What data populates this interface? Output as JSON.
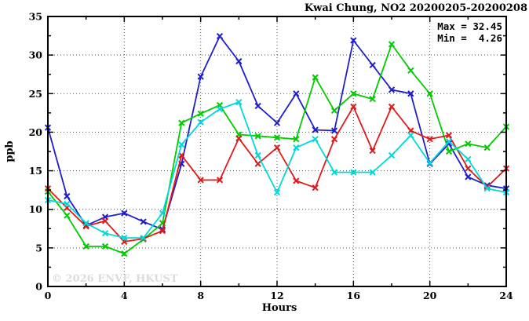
{
  "chart": {
    "title": "Kwai Chung, NO2 20200205-20200208",
    "max_label": "Max = 32.45",
    "min_label": "Min =  4.26",
    "xlabel": "Hours",
    "ylabel": "ppb",
    "watermark": "© 2026 ENVF, HKUST"
  },
  "chart_data": {
    "type": "line",
    "title": "Kwai Chung, NO2 20200205-20200208",
    "xlabel": "Hours",
    "ylabel": "ppb",
    "xlim": [
      0,
      24
    ],
    "ylim": [
      0,
      35
    ],
    "x_major_ticks": [
      0,
      4,
      8,
      12,
      16,
      20,
      24
    ],
    "x_minor_step": 2,
    "y_major_ticks": [
      0,
      5,
      10,
      15,
      20,
      25,
      30,
      35
    ],
    "y_minor_step": 2.5,
    "grid_x": [
      4,
      8,
      12,
      16,
      20
    ],
    "grid_y": [
      5,
      10,
      15,
      20,
      25,
      30
    ],
    "legend": "none",
    "marker": "x-cross",
    "stats": {
      "max": 32.45,
      "min": 4.26
    },
    "x": [
      0,
      1,
      2,
      3,
      4,
      5,
      6,
      7,
      8,
      9,
      10,
      11,
      12,
      13,
      14,
      15,
      16,
      17,
      18,
      19,
      20,
      21,
      22,
      23,
      24
    ],
    "series": [
      {
        "name": "series-blue",
        "color": "#1e1ecd",
        "values": [
          20.6,
          11.7,
          7.9,
          9.0,
          9.5,
          8.4,
          7.4,
          15.9,
          27.2,
          32.45,
          29.2,
          23.4,
          21.2,
          25.0,
          20.3,
          20.2,
          31.9,
          28.7,
          25.5,
          25.0,
          15.9,
          18.5,
          14.2,
          13.1,
          12.7
        ]
      },
      {
        "name": "series-green",
        "color": "#00cc00",
        "values": [
          12.3,
          9.2,
          5.2,
          5.2,
          4.26,
          6.1,
          8.2,
          21.2,
          22.4,
          23.5,
          19.7,
          19.5,
          19.3,
          19.1,
          27.1,
          22.8,
          25.0,
          24.3,
          31.4,
          28.0,
          25.0,
          17.5,
          18.5,
          18.0,
          20.7
        ]
      },
      {
        "name": "series-red",
        "color": "#e01a1a",
        "values": [
          12.7,
          10.2,
          7.8,
          8.5,
          5.8,
          6.2,
          7.2,
          17.0,
          13.8,
          13.8,
          19.2,
          15.9,
          18.0,
          13.7,
          12.8,
          19.1,
          23.3,
          17.6,
          23.3,
          20.2,
          19.1,
          19.6,
          15.3,
          12.9,
          15.3
        ]
      },
      {
        "name": "series-cyan",
        "color": "#00d9d9",
        "values": [
          11.2,
          10.7,
          8.2,
          6.9,
          6.3,
          6.3,
          9.5,
          18.4,
          21.3,
          23.0,
          23.9,
          17.0,
          12.2,
          18.0,
          19.1,
          14.8,
          14.8,
          14.8,
          17.0,
          19.6,
          16.0,
          18.8,
          16.5,
          12.7,
          12.2
        ]
      }
    ]
  }
}
